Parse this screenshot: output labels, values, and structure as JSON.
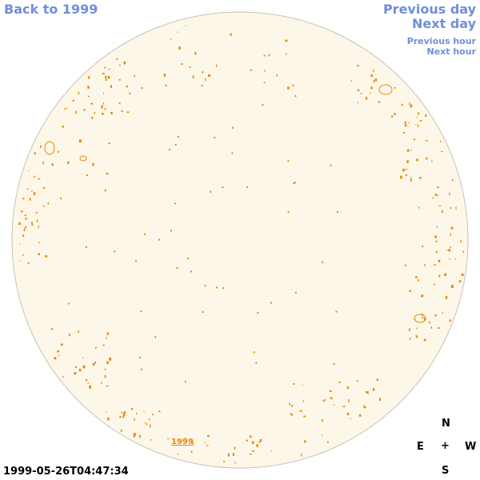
{
  "nav": {
    "back_label": "Back to 1999",
    "prev_day_label": "Previous day",
    "next_day_label": "Next day",
    "prev_hour_label": "Previous hour",
    "next_hour_label": "Next hour"
  },
  "timestamp": "1999-05-26T04:47:34",
  "year_link": "1999",
  "compass": {
    "north": "N",
    "east": "E",
    "center": "+",
    "west": "W",
    "south": "S"
  },
  "colors": {
    "disk_fill": "#fdf7ea",
    "disk_edge": "#c9c2b5",
    "contour": "#e68a00",
    "nav_text": "#6f8fd8"
  }
}
